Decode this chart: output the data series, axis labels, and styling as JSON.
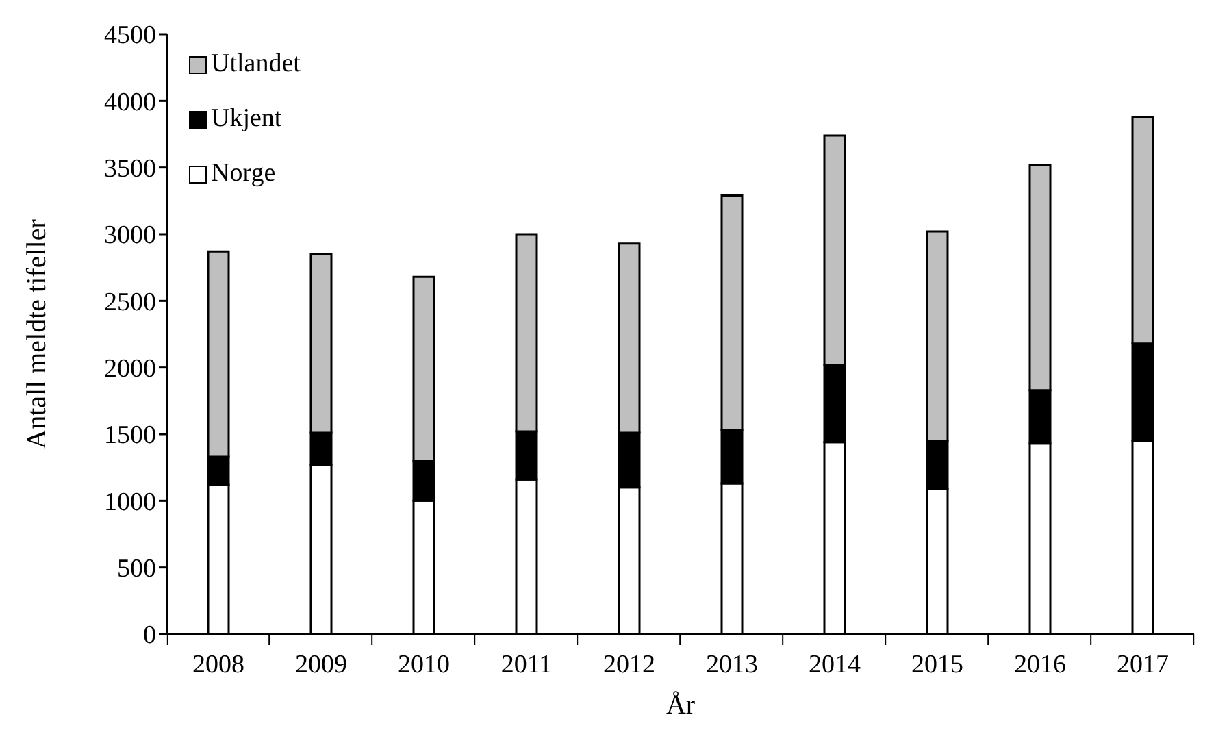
{
  "chart_data": {
    "type": "bar",
    "stacked": true,
    "xlabel": "År",
    "ylabel": "Antall meldte tifeller",
    "categories": [
      "2008",
      "2009",
      "2010",
      "2011",
      "2012",
      "2013",
      "2014",
      "2015",
      "2016",
      "2017"
    ],
    "series": [
      {
        "name": "Norge",
        "color": "#ffffff",
        "values": [
          1120,
          1270,
          1000,
          1160,
          1100,
          1130,
          1440,
          1090,
          1430,
          1450
        ]
      },
      {
        "name": "Ukjent",
        "color": "#000000",
        "values": [
          210,
          240,
          300,
          360,
          410,
          400,
          580,
          360,
          400,
          730
        ]
      },
      {
        "name": "Utlandet",
        "color": "#bfbfbf",
        "values": [
          1540,
          1340,
          1380,
          1480,
          1420,
          1760,
          1720,
          1570,
          1690,
          1700
        ]
      }
    ],
    "ylim": [
      0,
      4500
    ],
    "yticks": [
      0,
      500,
      1000,
      1500,
      2000,
      2500,
      3000,
      3500,
      4000,
      4500
    ],
    "grid": false,
    "legend": "top left"
  }
}
